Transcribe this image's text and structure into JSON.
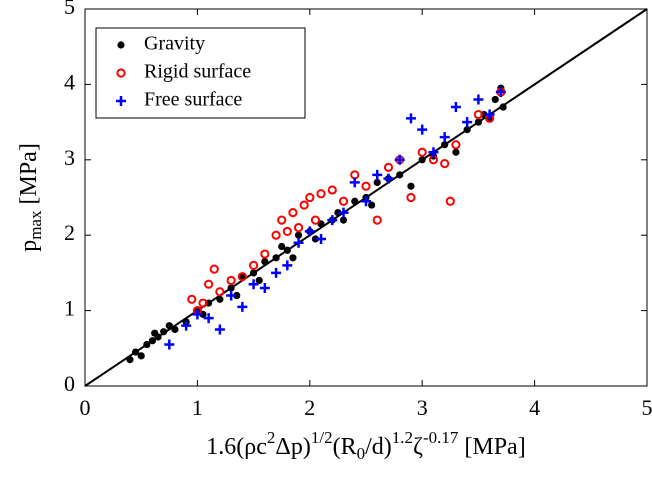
{
  "chart_data": {
    "type": "scatter",
    "xlabel": [
      {
        "text": "1.6(ρc"
      },
      {
        "text": "2",
        "pos": "sup"
      },
      {
        "text": "Δp)"
      },
      {
        "text": "1/2",
        "pos": "sup"
      },
      {
        "text": "(R"
      },
      {
        "text": "0",
        "pos": "sub"
      },
      {
        "text": "/d)"
      },
      {
        "text": "1.2",
        "pos": "sup"
      },
      {
        "text": "ζ"
      },
      {
        "text": "-0.17",
        "pos": "sup"
      },
      {
        "text": " [MPa]"
      }
    ],
    "ylabel": [
      {
        "text": "p"
      },
      {
        "text": "max",
        "pos": "sub"
      },
      {
        "text": " [MPa]"
      }
    ],
    "xlim": [
      0,
      5
    ],
    "ylim": [
      0,
      5
    ],
    "xticks": [
      0,
      1,
      2,
      3,
      4,
      5
    ],
    "yticks": [
      0,
      1,
      2,
      3,
      4,
      5
    ],
    "legend": "upper left",
    "lines": [
      {
        "x": [
          0,
          5
        ],
        "y": [
          0,
          5
        ],
        "color": "#000000"
      }
    ],
    "series": [
      {
        "name": "Gravity",
        "color": "#000000",
        "marker": "dot",
        "x": [
          0.4,
          0.45,
          0.5,
          0.55,
          0.6,
          0.62,
          0.65,
          0.7,
          0.75,
          0.8,
          0.9,
          1.0,
          1.05,
          1.1,
          1.2,
          1.3,
          1.35,
          1.4,
          1.5,
          1.55,
          1.6,
          1.7,
          1.75,
          1.8,
          1.85,
          1.9,
          2.0,
          2.05,
          2.1,
          2.2,
          2.25,
          2.3,
          2.4,
          2.5,
          2.55,
          2.6,
          2.7,
          2.8,
          2.9,
          3.0,
          3.1,
          3.2,
          3.3,
          3.4,
          3.5,
          3.55,
          3.6,
          3.65,
          3.7,
          3.72
        ],
        "values": [
          0.35,
          0.45,
          0.4,
          0.55,
          0.6,
          0.7,
          0.65,
          0.72,
          0.8,
          0.75,
          0.85,
          1.0,
          0.95,
          1.1,
          1.15,
          1.3,
          1.2,
          1.45,
          1.5,
          1.4,
          1.65,
          1.7,
          1.85,
          1.8,
          1.7,
          2.0,
          2.05,
          1.95,
          2.15,
          2.2,
          2.3,
          2.2,
          2.45,
          2.5,
          2.4,
          2.7,
          2.75,
          2.8,
          2.65,
          3.0,
          3.05,
          3.2,
          3.1,
          3.4,
          3.5,
          3.6,
          3.55,
          3.8,
          3.95,
          3.7
        ]
      },
      {
        "name": "Rigid surface",
        "color": "#ff0000",
        "marker": "circle",
        "x": [
          0.95,
          1.0,
          1.05,
          1.1,
          1.15,
          1.2,
          1.3,
          1.4,
          1.5,
          1.6,
          1.7,
          1.75,
          1.8,
          1.85,
          1.9,
          1.95,
          2.0,
          2.05,
          2.1,
          2.2,
          2.3,
          2.4,
          2.5,
          2.6,
          2.7,
          2.8,
          2.9,
          3.0,
          3.1,
          3.2,
          3.25,
          3.3,
          3.5,
          3.6,
          3.7
        ],
        "values": [
          1.15,
          1.0,
          1.1,
          1.35,
          1.55,
          1.25,
          1.4,
          1.45,
          1.6,
          1.75,
          2.0,
          2.2,
          2.05,
          2.3,
          2.1,
          2.4,
          2.5,
          2.2,
          2.55,
          2.6,
          2.45,
          2.8,
          2.65,
          2.2,
          2.9,
          3.0,
          2.5,
          3.1,
          3.0,
          2.95,
          2.45,
          3.2,
          3.6,
          3.55,
          3.9
        ]
      },
      {
        "name": "Free surface",
        "color": "#0000ff",
        "marker": "plus",
        "x": [
          0.75,
          0.9,
          1.0,
          1.1,
          1.2,
          1.3,
          1.4,
          1.5,
          1.6,
          1.7,
          1.8,
          1.9,
          2.0,
          2.1,
          2.2,
          2.3,
          2.4,
          2.5,
          2.6,
          2.7,
          2.8,
          2.9,
          3.0,
          3.1,
          3.2,
          3.3,
          3.4,
          3.5,
          3.6,
          3.7
        ],
        "values": [
          0.55,
          0.8,
          0.95,
          0.9,
          0.75,
          1.2,
          1.05,
          1.35,
          1.3,
          1.5,
          1.6,
          1.9,
          2.05,
          1.95,
          2.2,
          2.3,
          2.7,
          2.45,
          2.8,
          2.75,
          3.0,
          3.55,
          3.4,
          3.1,
          3.3,
          3.7,
          3.5,
          3.8,
          3.6,
          3.9
        ]
      }
    ]
  }
}
